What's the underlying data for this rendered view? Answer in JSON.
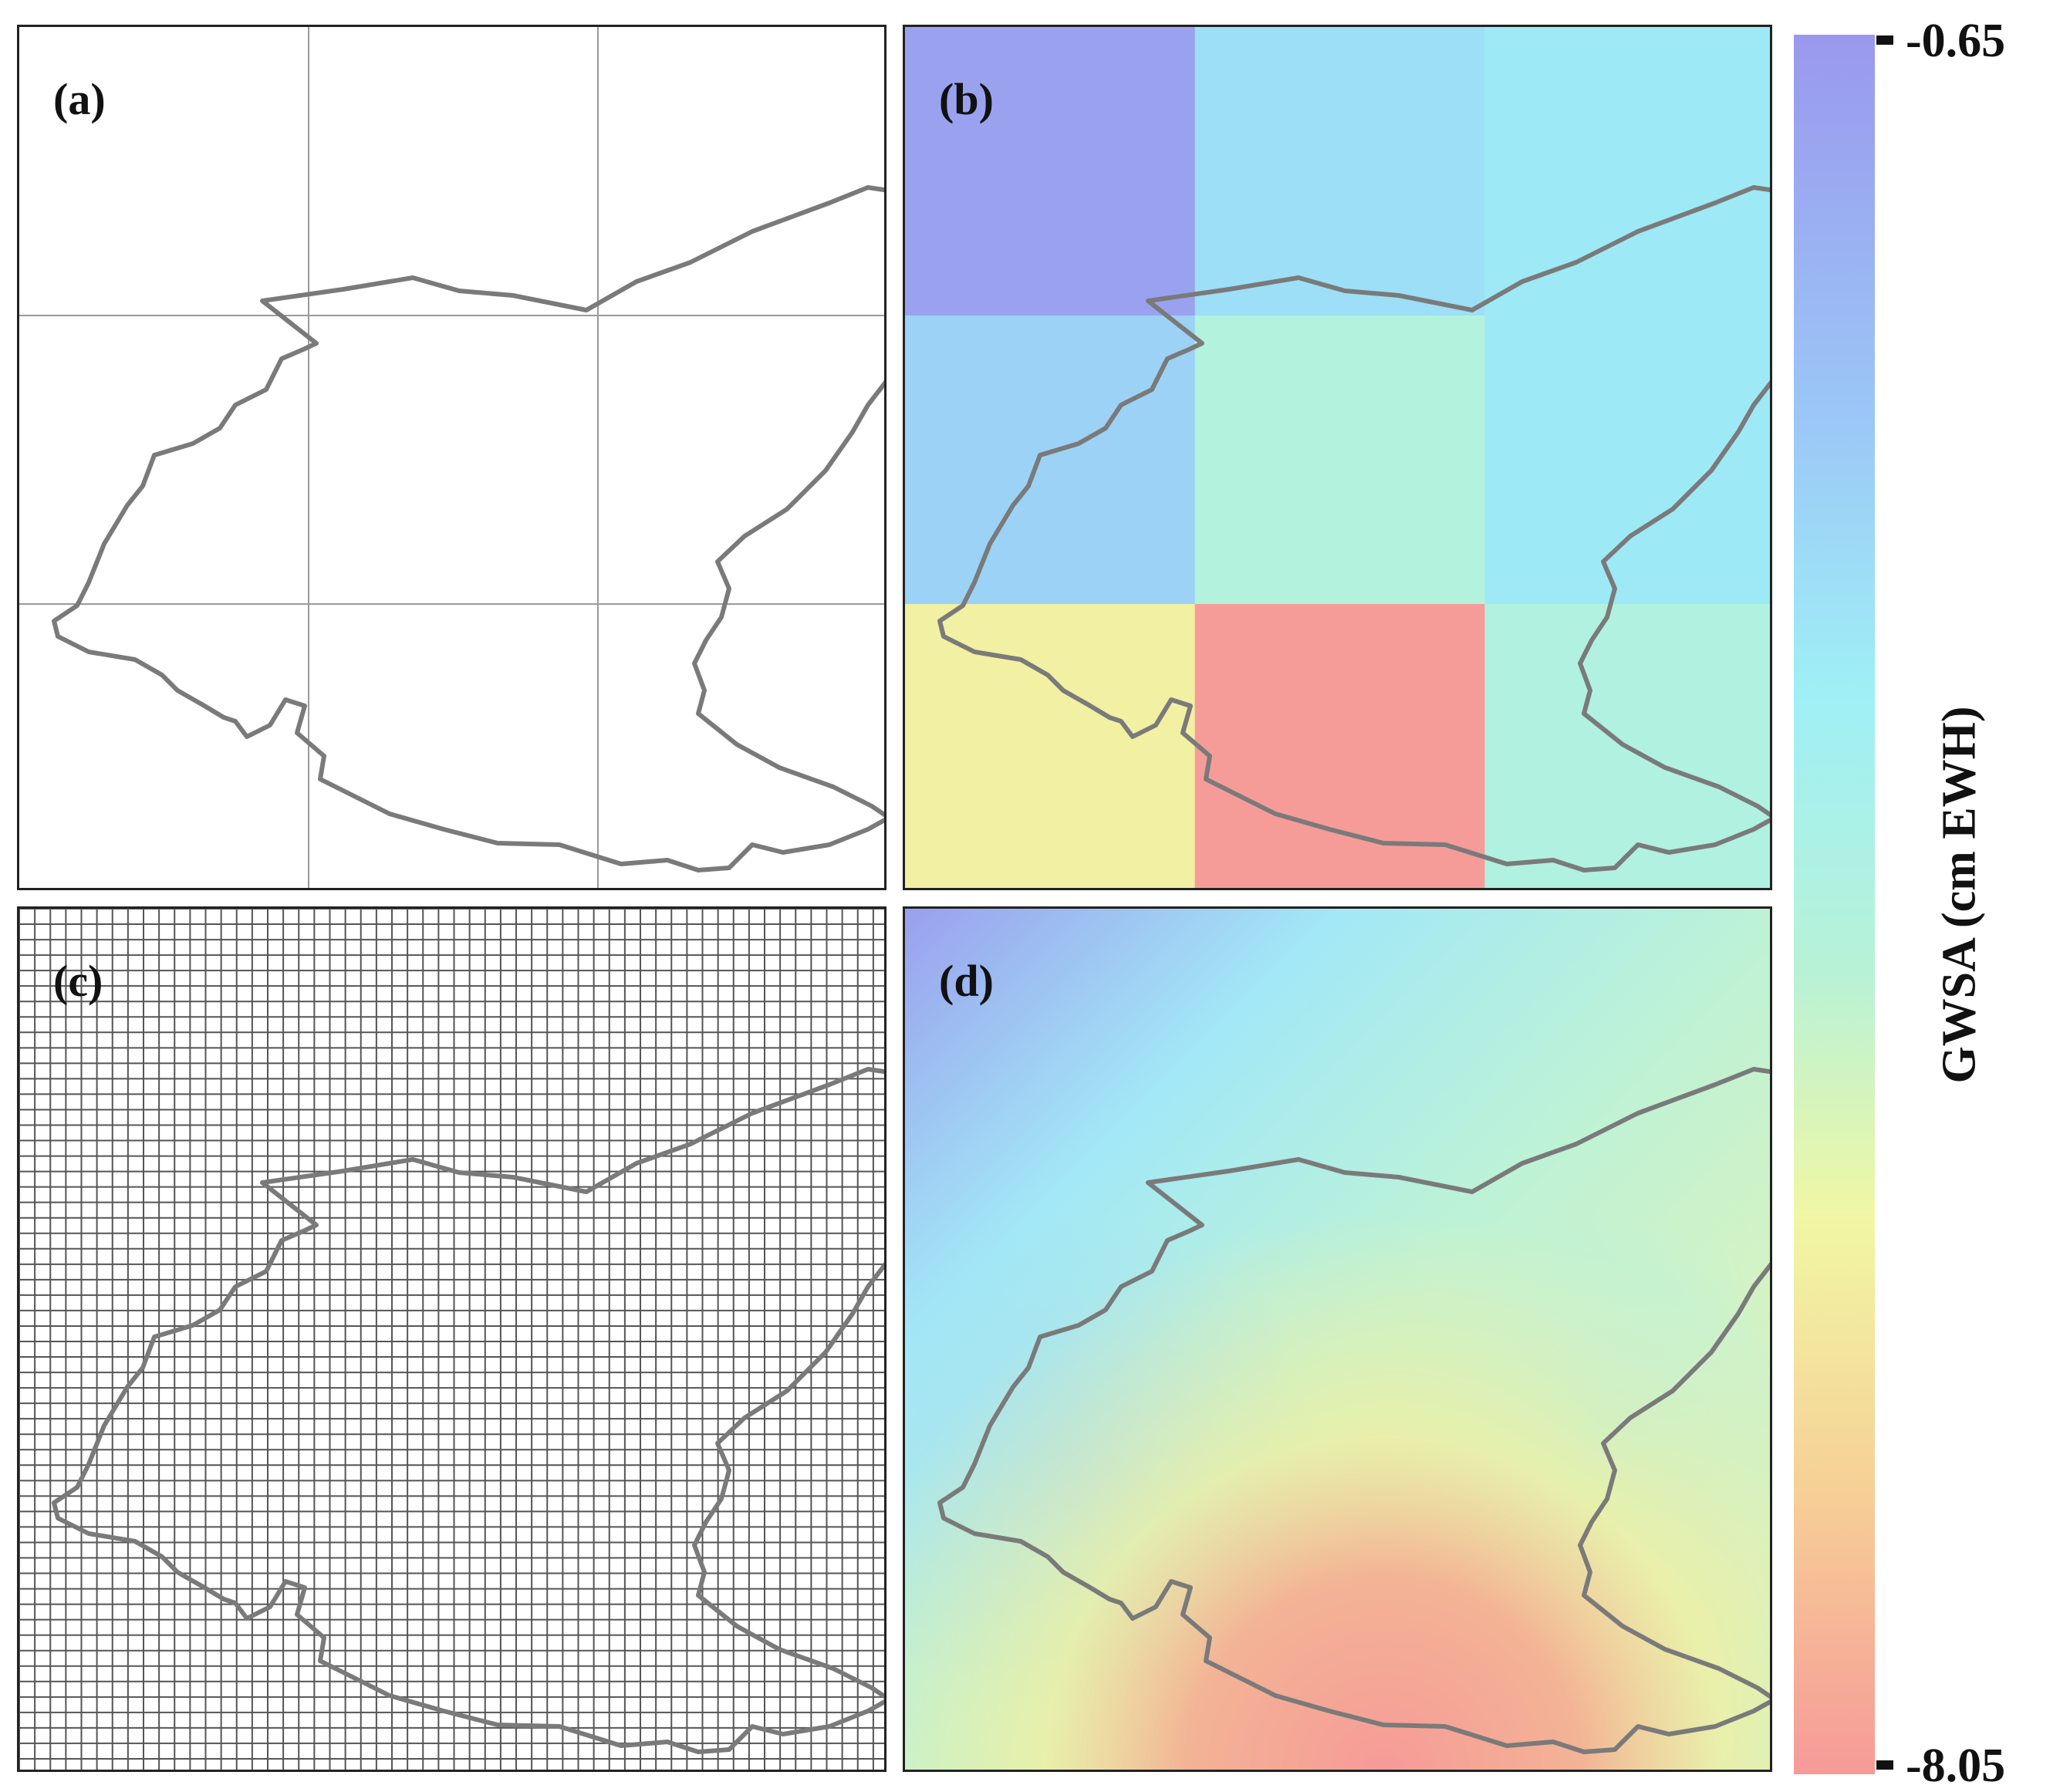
{
  "panels": [
    {
      "id": "a",
      "label": "(a)"
    },
    {
      "id": "b",
      "label": "(b)"
    },
    {
      "id": "c",
      "label": "(c)"
    },
    {
      "id": "d",
      "label": "(d)"
    }
  ],
  "coarse_grid_values": [
    [
      -0.9,
      -2.6,
      -2.9
    ],
    [
      -2.2,
      -4.1,
      -2.9
    ],
    [
      -5.8,
      -8.0,
      -4.0
    ]
  ],
  "fine_grid_count": 56,
  "colorbar": {
    "title": "GWSA (cm EWH)",
    "max_label": "-0.65",
    "min_label": "-8.05",
    "max": -0.65,
    "min": -8.05,
    "colors": [
      "#9a98ee",
      "#9bc7f6",
      "#9ff0f6",
      "#b8f2d6",
      "#f1f7a4",
      "#f6cf96",
      "#f69a98"
    ]
  }
}
